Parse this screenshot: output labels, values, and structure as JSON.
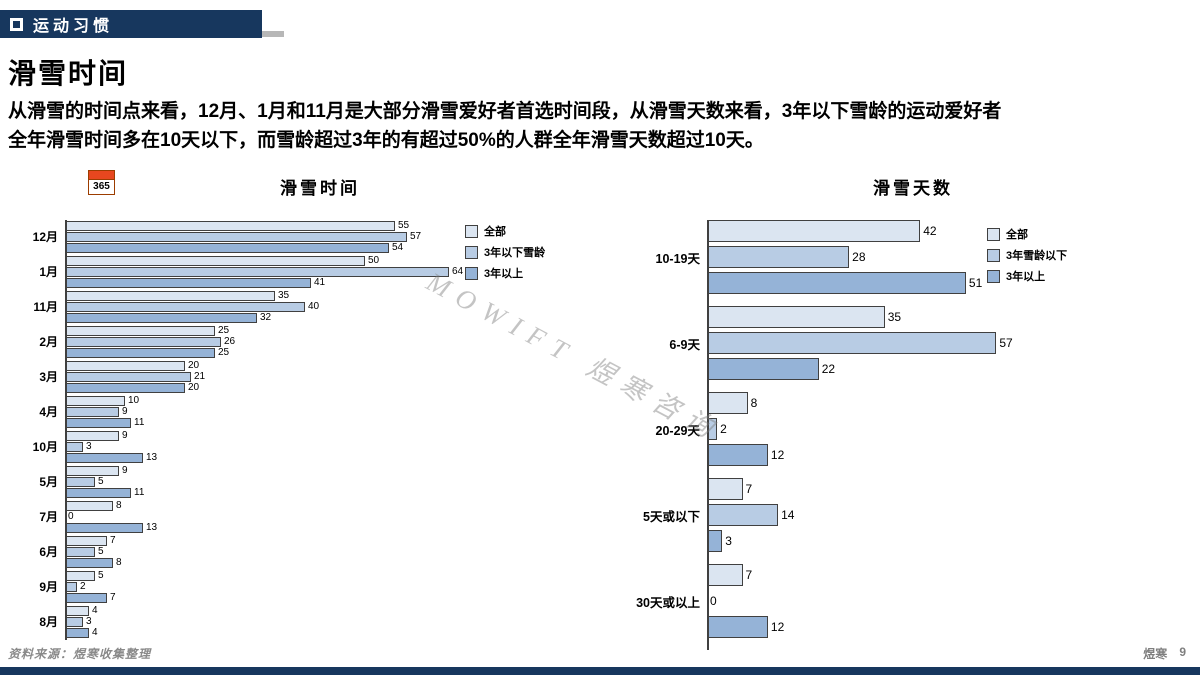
{
  "header": {
    "section_label": "运动习惯"
  },
  "page": {
    "title": "滑雪时间",
    "body_lines": [
      "从滑雪的时间点来看，12月、1月和11月是大部分滑雪爱好者首选时间段，从滑雪天数来看，3年以下雪龄的运动爱好者",
      "全年滑雪时间多在10天以下，而雪龄超过3年的有超过50%的人群全年滑雪天数超过10天。"
    ],
    "watermark": "MOWIFT 煜寒咨询",
    "calendar_icon_text": "365",
    "footer_source": "资料来源：煜寒收集整理",
    "footer_brand": "煜寒",
    "footer_page": "9"
  },
  "colors": {
    "header_bar": "#17375E",
    "axis": "#404040",
    "series_all": "#dbe5f1",
    "series_under3": "#b8cce4",
    "series_over3": "#95b3d7"
  },
  "chart_data": [
    {
      "type": "bar",
      "orientation": "horizontal",
      "title": "滑雪时间",
      "legend_position": "top-right",
      "grid": false,
      "xlim": [
        0,
        70
      ],
      "categories": [
        "12月",
        "1月",
        "11月",
        "2月",
        "3月",
        "4月",
        "10月",
        "5月",
        "7月",
        "6月",
        "9月",
        "8月"
      ],
      "series": [
        {
          "name": "全部",
          "color": "#dbe5f1",
          "values": [
            55,
            50,
            35,
            25,
            20,
            10,
            9,
            9,
            8,
            7,
            5,
            4
          ]
        },
        {
          "name": "3年以下雪龄",
          "color": "#b8cce4",
          "values": [
            57,
            64,
            40,
            26,
            21,
            9,
            3,
            5,
            0,
            5,
            2,
            3
          ]
        },
        {
          "name": "3年以上",
          "color": "#95b3d7",
          "values": [
            54,
            41,
            32,
            25,
            20,
            11,
            13,
            11,
            13,
            8,
            7,
            4
          ]
        }
      ]
    },
    {
      "type": "bar",
      "orientation": "horizontal",
      "title": "滑雪天数",
      "legend_position": "top-right",
      "grid": false,
      "xlim": [
        0,
        65
      ],
      "categories": [
        "10-19天",
        "6-9天",
        "20-29天",
        "5天或以下",
        "30天或以上"
      ],
      "series": [
        {
          "name": "全部",
          "color": "#dbe5f1",
          "values": [
            42,
            35,
            8,
            7,
            7
          ]
        },
        {
          "name": "3年雪龄以下",
          "color": "#b8cce4",
          "values": [
            28,
            57,
            2,
            14,
            0
          ]
        },
        {
          "name": "3年以上",
          "color": "#95b3d7",
          "values": [
            51,
            22,
            12,
            3,
            12
          ]
        }
      ]
    }
  ]
}
